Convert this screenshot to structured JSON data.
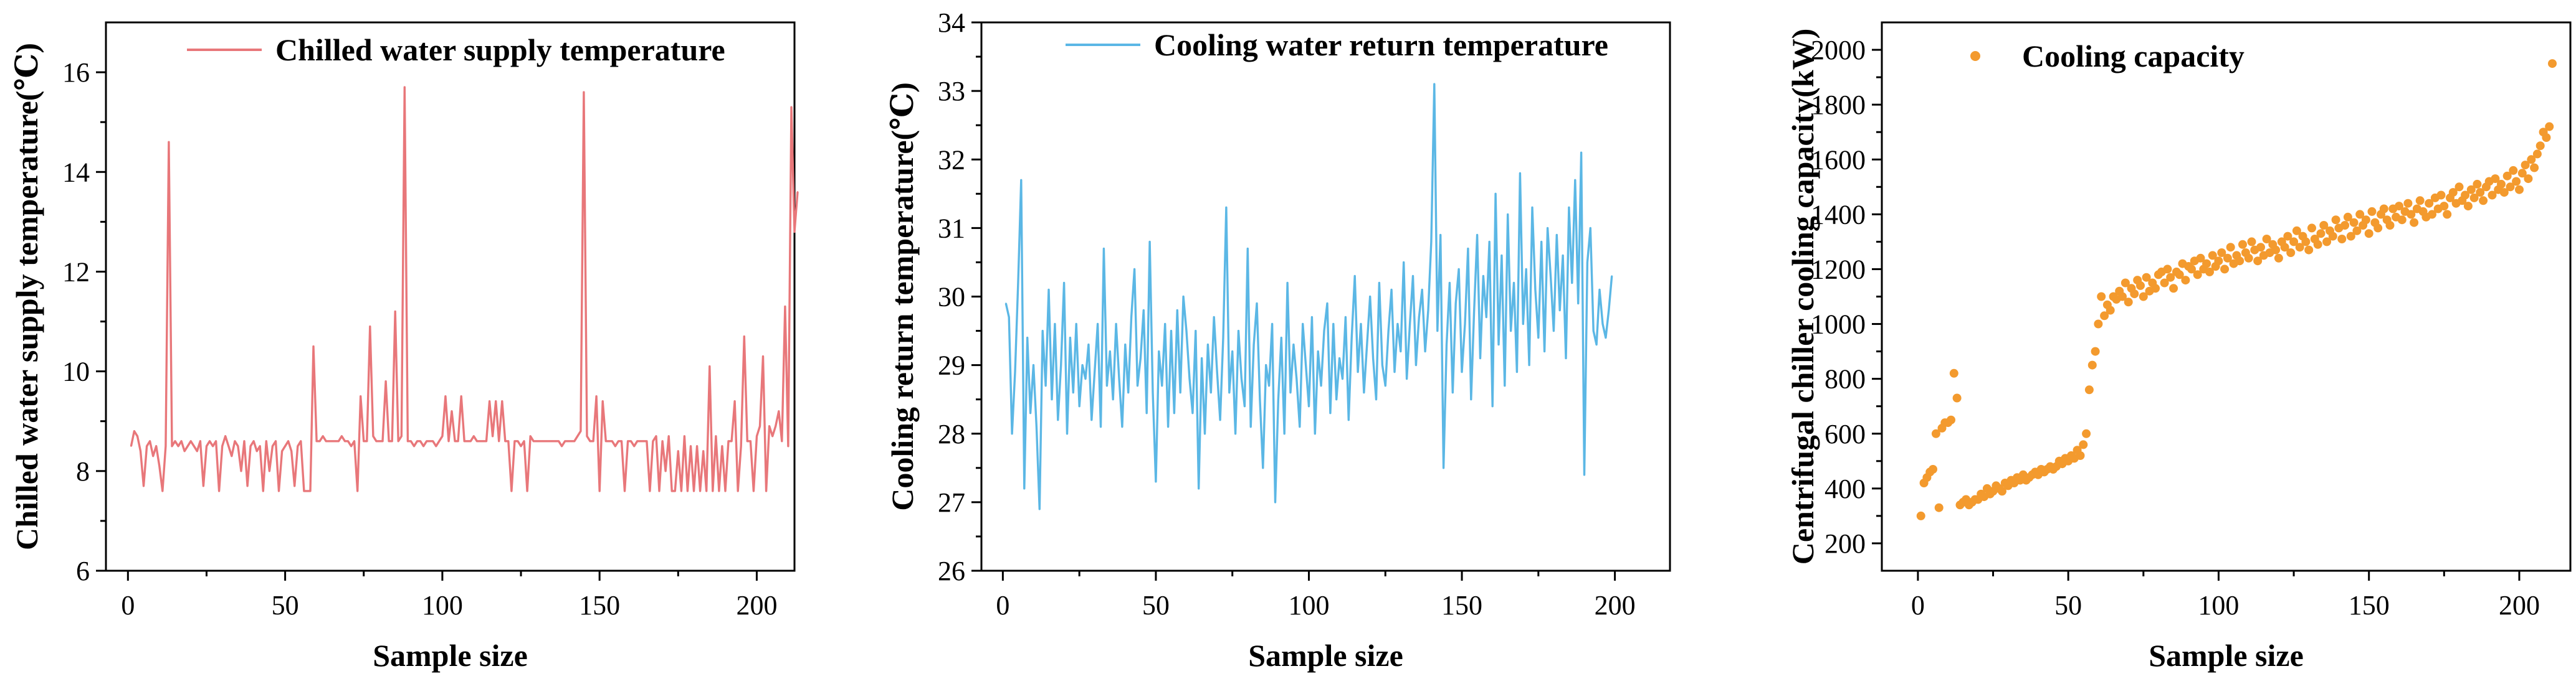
{
  "chart_data": [
    {
      "type": "line",
      "title": "",
      "xlabel": "Sample size",
      "ylabel": "Chilled water supply temperature(℃)",
      "xlim": [
        -7,
        212
      ],
      "ylim": [
        6,
        17
      ],
      "xticks": [
        0,
        50,
        100,
        150,
        200
      ],
      "yticks": [
        6,
        8,
        10,
        12,
        14,
        16
      ],
      "legend": {
        "label": "Chilled water supply temperature",
        "position": "top-right"
      },
      "color": "#E8777A",
      "series": [
        {
          "name": "Chilled water supply temperature",
          "x_start": 1,
          "values": [
            8.5,
            8.8,
            8.7,
            8.4,
            7.7,
            8.5,
            8.6,
            8.3,
            8.5,
            8.1,
            7.6,
            8.5,
            14.6,
            8.5,
            8.6,
            8.5,
            8.6,
            8.4,
            8.5,
            8.6,
            8.5,
            8.4,
            8.6,
            7.7,
            8.5,
            8.6,
            8.5,
            8.6,
            7.6,
            8.5,
            8.7,
            8.5,
            8.3,
            8.6,
            8.5,
            8.0,
            8.6,
            7.7,
            8.5,
            8.6,
            8.4,
            8.5,
            7.6,
            8.6,
            8.0,
            8.5,
            8.6,
            7.6,
            8.4,
            8.5,
            8.6,
            8.4,
            7.7,
            8.5,
            8.6,
            7.6,
            7.6,
            7.6,
            10.5,
            8.6,
            8.6,
            8.7,
            8.6,
            8.6,
            8.6,
            8.6,
            8.6,
            8.7,
            8.6,
            8.6,
            8.5,
            8.6,
            7.6,
            9.5,
            8.6,
            8.6,
            10.9,
            8.7,
            8.6,
            8.6,
            8.6,
            9.8,
            8.6,
            8.6,
            11.2,
            8.6,
            8.7,
            15.7,
            8.6,
            8.6,
            8.5,
            8.6,
            8.6,
            8.5,
            8.6,
            8.6,
            8.6,
            8.5,
            8.6,
            8.7,
            9.5,
            8.6,
            9.2,
            8.6,
            8.6,
            9.5,
            8.6,
            8.6,
            8.6,
            8.7,
            8.6,
            8.6,
            8.6,
            8.6,
            9.4,
            8.7,
            9.4,
            8.6,
            9.4,
            8.6,
            8.6,
            7.6,
            8.6,
            8.6,
            8.5,
            8.6,
            7.6,
            8.7,
            8.6,
            8.6,
            8.6,
            8.6,
            8.6,
            8.6,
            8.6,
            8.6,
            8.6,
            8.5,
            8.6,
            8.6,
            8.6,
            8.6,
            8.7,
            8.8,
            15.6,
            8.7,
            8.6,
            8.6,
            9.5,
            7.6,
            9.4,
            8.6,
            8.6,
            8.6,
            8.5,
            8.6,
            8.6,
            7.6,
            8.6,
            8.6,
            8.5,
            8.6,
            8.6,
            8.6,
            8.6,
            7.6,
            8.6,
            8.7,
            7.6,
            8.6,
            8.0,
            8.7,
            7.6,
            7.6,
            8.4,
            7.6,
            8.7,
            7.6,
            8.5,
            7.6,
            8.5,
            7.6,
            8.4,
            7.6,
            10.1,
            7.6,
            8.7,
            7.6,
            8.5,
            7.6,
            8.6,
            8.6,
            9.4,
            7.6,
            8.5,
            10.7,
            8.6,
            8.6,
            7.6,
            8.7,
            8.9,
            10.3,
            7.6,
            8.9,
            8.7,
            8.9,
            9.2,
            8.6,
            11.3,
            8.5,
            15.3,
            12.8,
            13.6
          ]
        }
      ]
    },
    {
      "type": "line",
      "title": "",
      "xlabel": "Sample size",
      "ylabel": "Cooling return temperature(℃)",
      "xlim": [
        -7,
        218
      ],
      "ylim": [
        26,
        34
      ],
      "xticks": [
        0,
        50,
        100,
        150,
        200
      ],
      "yticks": [
        26,
        27,
        28,
        29,
        30,
        31,
        32,
        33,
        34
      ],
      "legend": {
        "label": "Cooling water return temperature",
        "position": "top-right"
      },
      "color": "#5BB7E5",
      "series": [
        {
          "name": "Cooling water return temperature",
          "x_start": 1,
          "values": [
            29.9,
            29.7,
            28.0,
            28.9,
            30.2,
            31.7,
            27.2,
            29.4,
            28.3,
            29.0,
            28.1,
            26.9,
            29.5,
            28.7,
            30.1,
            28.5,
            29.6,
            28.2,
            29.0,
            30.2,
            28.0,
            29.4,
            28.6,
            29.6,
            28.4,
            29.0,
            28.8,
            29.3,
            28.2,
            28.9,
            29.6,
            28.1,
            30.7,
            28.7,
            29.2,
            28.5,
            29.6,
            28.8,
            28.1,
            29.3,
            28.6,
            29.7,
            30.4,
            28.7,
            29.1,
            29.8,
            28.3,
            30.8,
            28.6,
            27.3,
            29.2,
            28.7,
            29.6,
            28.1,
            29.5,
            28.3,
            29.8,
            28.6,
            30.0,
            29.5,
            28.8,
            28.3,
            29.5,
            27.2,
            29.1,
            28.0,
            29.3,
            28.6,
            29.7,
            28.9,
            28.2,
            29.4,
            31.3,
            28.6,
            29.2,
            28.0,
            29.5,
            28.8,
            28.4,
            30.7,
            28.1,
            29.3,
            29.9,
            28.5,
            27.5,
            29.0,
            28.7,
            29.6,
            27.0,
            28.5,
            29.4,
            28.0,
            30.2,
            28.6,
            29.3,
            28.8,
            28.1,
            29.6,
            29.0,
            28.4,
            29.7,
            28.0,
            29.2,
            28.7,
            29.5,
            29.9,
            28.3,
            29.6,
            28.5,
            29.1,
            28.8,
            29.7,
            28.2,
            29.4,
            30.3,
            28.9,
            29.6,
            28.6,
            29.3,
            30.0,
            29.1,
            28.5,
            30.2,
            29.0,
            28.7,
            29.5,
            30.1,
            28.9,
            29.6,
            29.2,
            30.5,
            28.8,
            29.6,
            30.3,
            29.0,
            29.7,
            30.1,
            29.2,
            29.8,
            30.8,
            33.1,
            29.5,
            30.9,
            27.5,
            29.3,
            30.2,
            28.6,
            29.9,
            30.4,
            28.9,
            29.6,
            30.7,
            28.5,
            29.8,
            30.9,
            29.1,
            30.3,
            29.7,
            30.8,
            28.4,
            31.5,
            29.3,
            30.6,
            28.7,
            31.2,
            29.5,
            30.2,
            28.9,
            31.8,
            29.6,
            30.4,
            29.0,
            31.3,
            30.1,
            29.4,
            30.8,
            29.2,
            31.0,
            30.3,
            29.5,
            30.9,
            29.8,
            30.6,
            29.1,
            31.3,
            30.2,
            31.7,
            29.9,
            32.1,
            27.4,
            30.5,
            31.0,
            29.5,
            29.3,
            30.1,
            29.6,
            29.4,
            29.8,
            30.3
          ]
        }
      ]
    },
    {
      "type": "scatter",
      "title": "",
      "xlabel": "Sample size",
      "ylabel": "Centrifugal chiller cooling capacity(kW)",
      "xlim": [
        -12,
        217
      ],
      "ylim": [
        100,
        2100
      ],
      "xticks": [
        0,
        50,
        100,
        150,
        200
      ],
      "yticks": [
        200,
        400,
        600,
        800,
        1000,
        1200,
        1400,
        1600,
        1800,
        2000
      ],
      "legend": {
        "label": "Cooling capacity",
        "position": "top-left"
      },
      "color": "#F39A2E",
      "series": [
        {
          "name": "Cooling capacity",
          "x_start": 1,
          "values": [
            300,
            420,
            440,
            460,
            470,
            600,
            330,
            620,
            640,
            640,
            650,
            820,
            730,
            340,
            350,
            360,
            340,
            350,
            360,
            360,
            380,
            370,
            400,
            380,
            390,
            410,
            400,
            390,
            420,
            410,
            430,
            420,
            440,
            430,
            450,
            430,
            440,
            450,
            460,
            450,
            470,
            460,
            470,
            480,
            470,
            480,
            500,
            490,
            510,
            500,
            520,
            510,
            540,
            520,
            560,
            600,
            760,
            850,
            900,
            1000,
            1100,
            1030,
            1070,
            1050,
            1100,
            1090,
            1120,
            1100,
            1150,
            1080,
            1130,
            1110,
            1160,
            1140,
            1100,
            1170,
            1120,
            1150,
            1130,
            1180,
            1190,
            1150,
            1200,
            1170,
            1130,
            1190,
            1180,
            1220,
            1160,
            1210,
            1200,
            1230,
            1180,
            1240,
            1200,
            1220,
            1190,
            1250,
            1210,
            1230,
            1260,
            1200,
            1240,
            1280,
            1220,
            1250,
            1230,
            1290,
            1260,
            1240,
            1300,
            1270,
            1230,
            1280,
            1250,
            1310,
            1260,
            1290,
            1270,
            1240,
            1300,
            1280,
            1320,
            1260,
            1300,
            1340,
            1280,
            1320,
            1300,
            1270,
            1350,
            1310,
            1290,
            1330,
            1360,
            1300,
            1340,
            1320,
            1380,
            1350,
            1310,
            1360,
            1390,
            1320,
            1370,
            1340,
            1400,
            1360,
            1380,
            1330,
            1410,
            1370,
            1350,
            1400,
            1420,
            1380,
            1360,
            1420,
            1390,
            1430,
            1380,
            1410,
            1440,
            1400,
            1370,
            1420,
            1450,
            1410,
            1390,
            1440,
            1400,
            1460,
            1420,
            1470,
            1430,
            1400,
            1460,
            1480,
            1440,
            1500,
            1450,
            1470,
            1430,
            1490,
            1460,
            1510,
            1480,
            1450,
            1500,
            1520,
            1470,
            1530,
            1490,
            1510,
            1480,
            1540,
            1500,
            1560,
            1520,
            1490,
            1550,
            1580,
            1530,
            1600,
            1570,
            1620,
            1650,
            1700,
            1680,
            1720,
            1950
          ]
        }
      ]
    }
  ]
}
